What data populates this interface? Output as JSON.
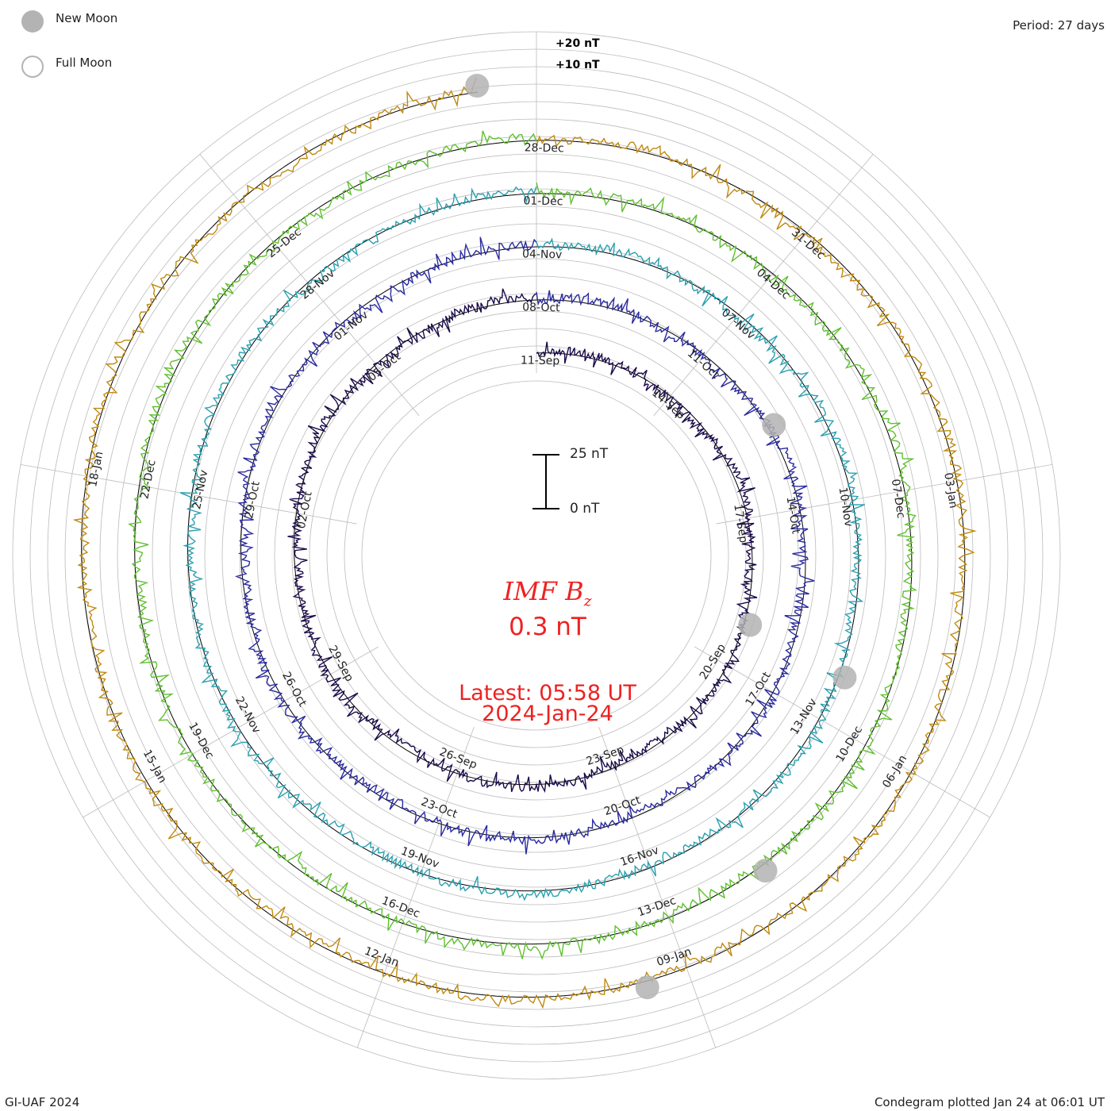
{
  "legend": {
    "new_moon_label": "New Moon",
    "full_moon_label": "Full Moon"
  },
  "header": {
    "period_label": "Period: 27 days"
  },
  "footer": {
    "credit": "GI-UAF 2024",
    "plotted": "Condegram plotted Jan 24 at 06:01 UT"
  },
  "center": {
    "quantity": "IMF B",
    "quantity_sub": "z",
    "current_value": "0.3 nT",
    "latest_time": "Latest: 05:58 UT",
    "latest_date": "2024-Jan-24"
  },
  "scale_bar": {
    "top_label": "25 nT",
    "bottom_label": "0 nT"
  },
  "ring_scale": {
    "plus20": "+20 nT",
    "plus10": "+10 nT"
  },
  "colors": {
    "new_moon": "#b3b3b3",
    "center_text": "#ee2222",
    "grid": "#bbbbbb"
  },
  "chart_data": {
    "type": "line",
    "plot_style": "condegram spiral (polar, one revolution per period)",
    "period_days": 27,
    "units": "nT",
    "scale_label_nT": 25,
    "ring_gridlines_nT": [
      10,
      20
    ],
    "revolutions": [
      {
        "index": 1,
        "color": "#1a0a4a",
        "date_labels": [
          "11-Sep",
          "14-Sep",
          "17-Sep",
          "20-Sep",
          "23-Sep",
          "26-Sep",
          "29-Sep",
          "02-Oct",
          "05-Oct"
        ]
      },
      {
        "index": 2,
        "color": "#2a2aa0",
        "date_labels": [
          "08-Oct",
          "11-Oct",
          "14-Oct",
          "17-Oct",
          "20-Oct",
          "23-Oct",
          "26-Oct",
          "29-Oct",
          "01-Nov"
        ]
      },
      {
        "index": 3,
        "color": "#2aa0b0",
        "date_labels": [
          "04-Nov",
          "07-Nov",
          "10-Nov",
          "13-Nov",
          "16-Nov",
          "19-Nov",
          "22-Nov",
          "25-Nov",
          "28-Nov"
        ]
      },
      {
        "index": 4,
        "color": "#60c030",
        "date_labels": [
          "01-Dec",
          "04-Dec",
          "07-Dec",
          "10-Dec",
          "13-Dec",
          "16-Dec",
          "19-Dec",
          "22-Dec",
          "25-Dec"
        ]
      },
      {
        "index": 5,
        "color": "#c08a10",
        "date_labels": [
          "28-Dec",
          "31-Dec",
          "03-Jan",
          "06-Jan",
          "09-Jan",
          "12-Jan",
          "15-Jan",
          "18-Jan"
        ]
      }
    ],
    "moon_phase_labels": [
      "New Moon",
      "Full Moon"
    ]
  }
}
